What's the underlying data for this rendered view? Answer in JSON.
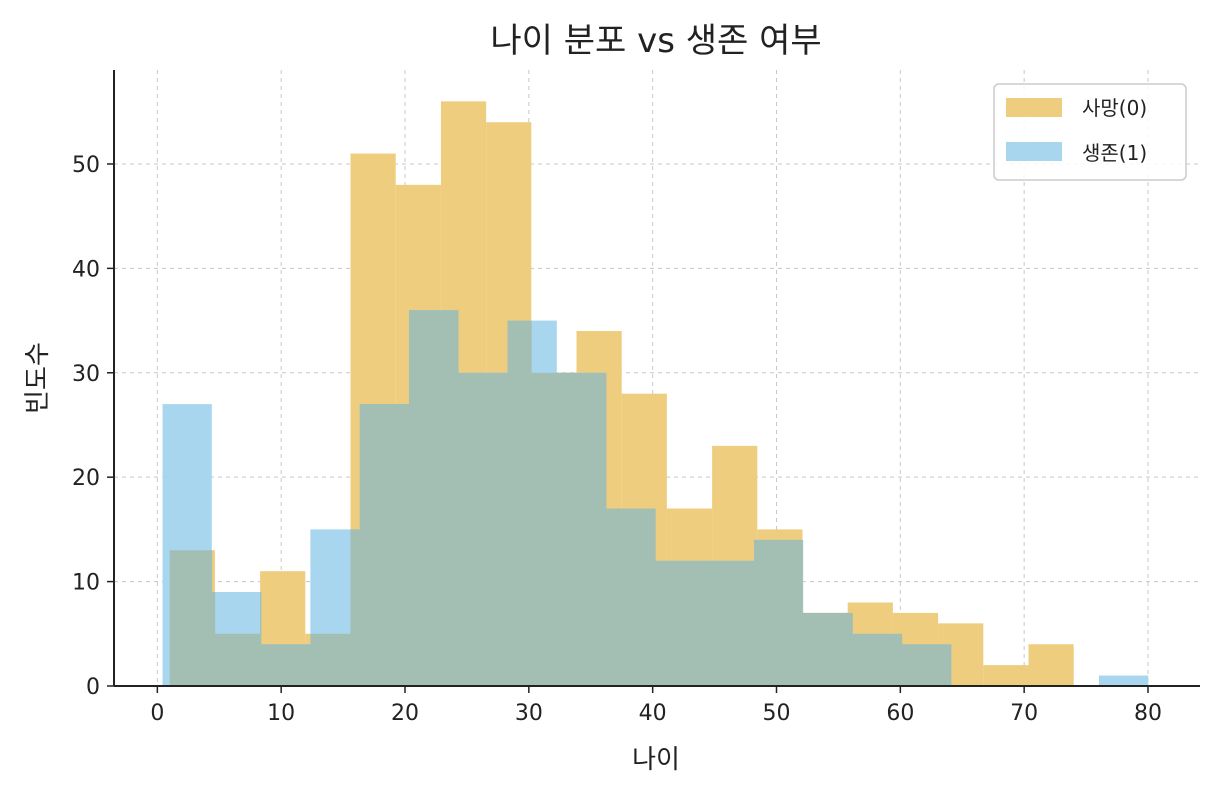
{
  "chart_data": {
    "type": "bar",
    "title": "나이 분포 vs 생존 여부",
    "xlabel": "나이",
    "ylabel": "빈도수",
    "xlim": [
      -3.5,
      84.2
    ],
    "ylim": [
      0,
      59
    ],
    "xticks": [
      0,
      10,
      20,
      30,
      40,
      50,
      60,
      70,
      80
    ],
    "yticks": [
      0,
      10,
      20,
      30,
      40,
      50
    ],
    "grid": true,
    "legend_position": "top-right",
    "overlap_color": "#a3bfb3",
    "series": [
      {
        "name": "사망(0)",
        "color": "#efcd7f",
        "bin_start": 1.0,
        "bin_width": 3.65,
        "values": [
          13,
          5,
          11,
          5,
          51,
          48,
          56,
          54,
          30,
          34,
          28,
          17,
          23,
          15,
          7,
          8,
          7,
          6,
          2,
          4
        ]
      },
      {
        "name": "생존(1)",
        "color": "#a8d6ef",
        "bin_start": 0.42,
        "bin_width": 3.98,
        "values": [
          27,
          9,
          4,
          15,
          27,
          36,
          30,
          35,
          30,
          17,
          12,
          12,
          14,
          7,
          5,
          4,
          0,
          0,
          0,
          1
        ]
      }
    ]
  }
}
